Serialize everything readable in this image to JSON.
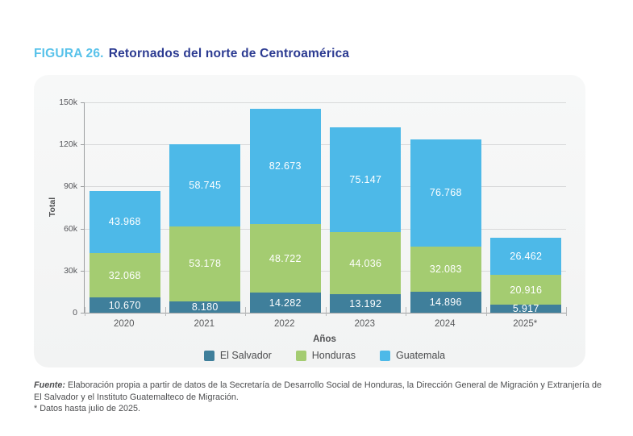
{
  "figure": {
    "label": "FIGURA 26.",
    "title": "Retornados del norte de Centroamérica",
    "label_color": "#58c2ea",
    "title_color": "#2b3a91"
  },
  "chart_data": {
    "type": "bar",
    "stacked": true,
    "title": "Retornados del norte de Centroamérica",
    "categories": [
      "2020",
      "2021",
      "2022",
      "2023",
      "2024",
      "2025*"
    ],
    "series": [
      {
        "name": "El Salvador",
        "color": "#3f7f9b",
        "values": [
          10670,
          8180,
          14282,
          13192,
          14896,
          5917
        ]
      },
      {
        "name": "Honduras",
        "color": "#a4cc71",
        "values": [
          32068,
          53178,
          48722,
          44036,
          32083,
          20916
        ]
      },
      {
        "name": "Guatemala",
        "color": "#4db9e8",
        "values": [
          43968,
          58745,
          82673,
          75147,
          76768,
          26462
        ]
      }
    ],
    "xlabel": "Años",
    "ylabel": "Total",
    "ylim": [
      0,
      150000
    ],
    "yticks": [
      0,
      30000,
      60000,
      90000,
      120000,
      150000
    ],
    "ytick_labels": [
      "0",
      "30k",
      "60k",
      "90k",
      "120k",
      "150k"
    ],
    "grid": true,
    "legend_position": "bottom",
    "value_label_format": "thousands-dot"
  },
  "footer": {
    "source_label": "Fuente:",
    "source_text": " Elaboración propia a partir de datos de la Secretaría de Desarrollo Social de Honduras, la Dirección General de Migración y Extranjería de El Salvador y el Instituto Guatemalteco de Migración.",
    "note": "* Datos hasta julio de 2025."
  }
}
